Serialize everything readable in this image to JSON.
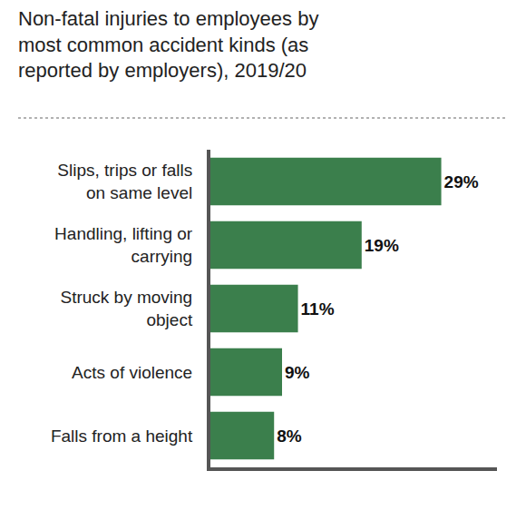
{
  "chart_data": {
    "type": "bar",
    "title": "Non-fatal injuries to employees by most common accident kinds (as reported by employers), 2019/20",
    "categories": [
      "Slips, trips or falls on same level",
      "Handling, lifting or carrying",
      "Struck by moving object",
      "Acts of violence",
      "Falls from a height"
    ],
    "values": [
      29,
      19,
      11,
      9,
      8
    ],
    "value_labels": [
      "29%",
      "19%",
      "11%",
      "9%",
      "8%"
    ],
    "color": "#3b7f4c",
    "orientation": "horizontal",
    "data_labels": true,
    "tick_labels": "y",
    "grid": false,
    "xlim": [
      0,
      36
    ]
  }
}
